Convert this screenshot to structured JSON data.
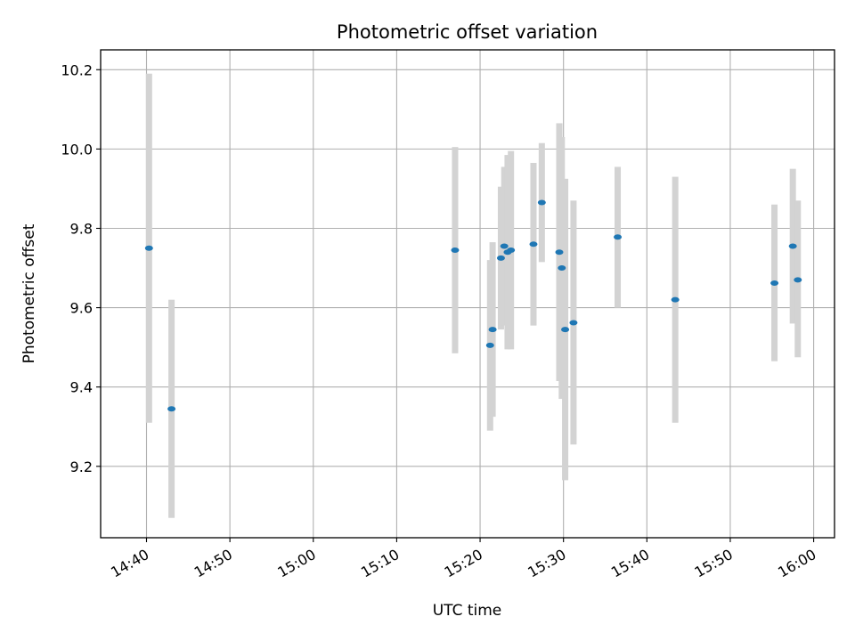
{
  "chart_data": {
    "type": "scatter",
    "title": "Photometric offset variation",
    "xlabel": "UTC time",
    "ylabel": "Photometric offset",
    "x_unit": "minutes of hour 14-16 UTC (clock time)",
    "xlim": [
      "14:34:30",
      "16:02:30"
    ],
    "ylim": [
      9.02,
      10.25
    ],
    "grid": true,
    "x_ticks": [
      "14:40",
      "14:50",
      "15:00",
      "15:10",
      "15:20",
      "15:30",
      "15:40",
      "15:50",
      "16:00"
    ],
    "y_ticks": [
      9.2,
      9.4,
      9.6,
      9.8,
      10.0,
      10.2
    ],
    "series": [
      {
        "color": "#1f77b4",
        "errorbar_color": "#d3d3d3",
        "points": [
          {
            "x": "14:40:18",
            "y": 9.75,
            "y_low": 9.31,
            "y_high": 10.19
          },
          {
            "x": "14:43:00",
            "y": 9.345,
            "y_low": 9.07,
            "y_high": 9.62
          },
          {
            "x": "15:17:00",
            "y": 9.745,
            "y_low": 9.485,
            "y_high": 10.005
          },
          {
            "x": "15:21:12",
            "y": 9.505,
            "y_low": 9.29,
            "y_high": 9.72
          },
          {
            "x": "15:21:30",
            "y": 9.545,
            "y_low": 9.325,
            "y_high": 9.765
          },
          {
            "x": "15:22:30",
            "y": 9.725,
            "y_low": 9.545,
            "y_high": 9.905
          },
          {
            "x": "15:22:54",
            "y": 9.755,
            "y_low": 9.555,
            "y_high": 9.955
          },
          {
            "x": "15:23:18",
            "y": 9.74,
            "y_low": 9.495,
            "y_high": 9.985
          },
          {
            "x": "15:23:42",
            "y": 9.745,
            "y_low": 9.495,
            "y_high": 9.995
          },
          {
            "x": "15:26:24",
            "y": 9.76,
            "y_low": 9.555,
            "y_high": 9.965
          },
          {
            "x": "15:27:24",
            "y": 9.865,
            "y_low": 9.715,
            "y_high": 10.015
          },
          {
            "x": "15:29:30",
            "y": 9.74,
            "y_low": 9.415,
            "y_high": 10.065
          },
          {
            "x": "15:29:48",
            "y": 9.7,
            "y_low": 9.37,
            "y_high": 10.03
          },
          {
            "x": "15:30:12",
            "y": 9.545,
            "y_low": 9.165,
            "y_high": 9.925
          },
          {
            "x": "15:31:12",
            "y": 9.562,
            "y_low": 9.255,
            "y_high": 9.87
          },
          {
            "x": "15:36:30",
            "y": 9.778,
            "y_low": 9.6,
            "y_high": 9.955
          },
          {
            "x": "15:43:24",
            "y": 9.62,
            "y_low": 9.31,
            "y_high": 9.93
          },
          {
            "x": "15:55:18",
            "y": 9.662,
            "y_low": 9.465,
            "y_high": 9.86
          },
          {
            "x": "15:57:30",
            "y": 9.755,
            "y_low": 9.56,
            "y_high": 9.95
          },
          {
            "x": "15:58:06",
            "y": 9.67,
            "y_low": 9.475,
            "y_high": 9.87
          }
        ]
      }
    ]
  }
}
